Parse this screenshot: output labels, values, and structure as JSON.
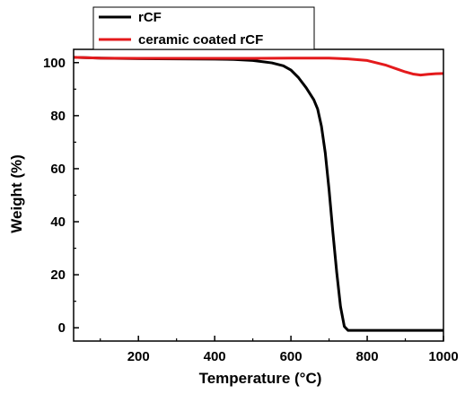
{
  "chart_data": {
    "type": "line",
    "title": "",
    "xlabel": "Temperature (°C)",
    "ylabel": "Weight (%)",
    "xlim": [
      30,
      1000
    ],
    "ylim": [
      -5,
      105
    ],
    "xticks": [
      "200",
      "400",
      "600",
      "800",
      "1000"
    ],
    "yticks": [
      "0",
      "20",
      "40",
      "60",
      "80",
      "100"
    ],
    "grid": false,
    "legend_position": "top-left",
    "series": [
      {
        "name": "rCF",
        "color": "#000000",
        "x": [
          30,
          100,
          200,
          300,
          400,
          450,
          500,
          550,
          580,
          600,
          620,
          640,
          660,
          670,
          680,
          690,
          700,
          710,
          720,
          730,
          740,
          750,
          760,
          800,
          850,
          900,
          950,
          1000
        ],
        "y": [
          102,
          101.7,
          101.5,
          101.4,
          101.3,
          101.2,
          100.8,
          99.9,
          98.8,
          97.2,
          94.3,
          90.5,
          86,
          82.5,
          76,
          66,
          52,
          36,
          21,
          8,
          0.5,
          -1,
          -1,
          -1,
          -1,
          -1,
          -1,
          -1
        ]
      },
      {
        "name": "ceramic coated rCF",
        "color": "#e41a1c",
        "x": [
          30,
          100,
          200,
          300,
          400,
          500,
          600,
          700,
          750,
          800,
          850,
          880,
          900,
          920,
          940,
          960,
          980,
          1000
        ],
        "y": [
          102,
          101.7,
          101.6,
          101.6,
          101.6,
          101.6,
          101.7,
          101.7,
          101.4,
          100.8,
          99,
          97.5,
          96.5,
          95.7,
          95.3,
          95.6,
          95.8,
          95.9
        ]
      }
    ]
  }
}
